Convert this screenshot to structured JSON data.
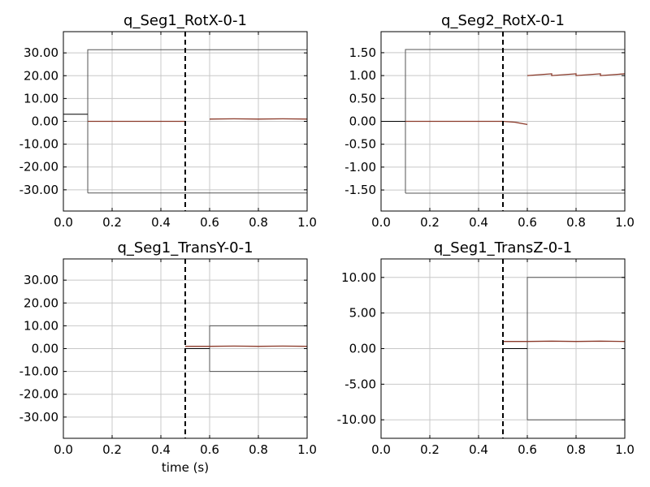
{
  "chart_data": [
    {
      "type": "line",
      "title": "q_Seg1_RotX-0-1",
      "xlabel": "",
      "ylabel": "",
      "xlim": [
        0,
        1
      ],
      "ylim": [
        -39.3,
        39.3
      ],
      "xticks": [
        "0.0",
        "0.2",
        "0.4",
        "0.6",
        "0.8",
        "1.0"
      ],
      "xtick_values": [
        0,
        0.2,
        0.4,
        0.6,
        0.8,
        1.0
      ],
      "yticks": [
        "30.00",
        "20.00",
        "10.00",
        "0.00",
        "-10.00",
        "-20.00",
        "-30.00"
      ],
      "ytick_values": [
        30,
        20,
        10,
        0,
        -10,
        -20,
        -30
      ],
      "grid": true,
      "vline_x": 0.5,
      "series": [
        {
          "role": "upper-bound",
          "color": "#555555",
          "x": [
            0.1,
            0.1,
            1.0
          ],
          "y": [
            -31.4,
            31.4,
            31.4
          ]
        },
        {
          "role": "lower-bound",
          "color": "#555555",
          "x": [
            0.1,
            1.0
          ],
          "y": [
            -31.4,
            -31.4
          ]
        },
        {
          "role": "initial",
          "color": "#000000",
          "x": [
            0.0,
            0.1
          ],
          "y": [
            3.1,
            3.1
          ]
        },
        {
          "role": "state",
          "color": "#8b3a2a",
          "x": [
            0.1,
            0.2,
            0.3,
            0.4,
            0.5
          ],
          "y": [
            0.0,
            0.0,
            0.0,
            0.0,
            0.0
          ]
        },
        {
          "role": "state",
          "color": "#8b3a2a",
          "x": [
            0.6,
            0.7,
            0.8,
            0.9,
            1.0
          ],
          "y": [
            1.0,
            1.1,
            1.0,
            1.1,
            1.0
          ]
        }
      ]
    },
    {
      "type": "line",
      "title": "q_Seg2_RotX-0-1",
      "xlabel": "",
      "ylabel": "",
      "xlim": [
        0,
        1
      ],
      "ylim": [
        -1.96,
        1.96
      ],
      "xticks": [
        "0.0",
        "0.2",
        "0.4",
        "0.6",
        "0.8",
        "1.0"
      ],
      "xtick_values": [
        0,
        0.2,
        0.4,
        0.6,
        0.8,
        1.0
      ],
      "yticks": [
        "1.50",
        "1.00",
        "0.50",
        "0.00",
        "-0.50",
        "-1.00",
        "-1.50"
      ],
      "ytick_values": [
        1.5,
        1.0,
        0.5,
        0.0,
        -0.5,
        -1.0,
        -1.5
      ],
      "grid": true,
      "vline_x": 0.5,
      "series": [
        {
          "role": "upper-bound",
          "color": "#555555",
          "x": [
            0.1,
            0.1,
            1.0
          ],
          "y": [
            -1.57,
            1.57,
            1.57
          ]
        },
        {
          "role": "lower-bound",
          "color": "#555555",
          "x": [
            0.1,
            1.0
          ],
          "y": [
            -1.57,
            -1.57
          ]
        },
        {
          "role": "initial",
          "color": "#000000",
          "x": [
            0.0,
            0.1
          ],
          "y": [
            0.0,
            0.0
          ]
        },
        {
          "role": "state",
          "color": "#8b3a2a",
          "x": [
            0.1,
            0.2,
            0.3,
            0.4,
            0.45,
            0.5,
            0.55,
            0.6
          ],
          "y": [
            0.0,
            0.0,
            0.0,
            0.0,
            0.0,
            0.0,
            -0.02,
            -0.07
          ]
        },
        {
          "role": "state",
          "color": "#8b3a2a",
          "x": [
            0.6,
            0.7,
            0.7,
            0.8,
            0.8,
            0.9,
            0.9,
            1.0
          ],
          "y": [
            1.0,
            1.04,
            1.0,
            1.04,
            1.0,
            1.04,
            1.0,
            1.04
          ]
        }
      ]
    },
    {
      "type": "line",
      "title": "q_Seg1_TransY-0-1",
      "xlabel": "time (s)",
      "ylabel": "",
      "xlim": [
        0,
        1
      ],
      "ylim": [
        -39.3,
        39.3
      ],
      "xticks": [
        "0.0",
        "0.2",
        "0.4",
        "0.6",
        "0.8",
        "1.0"
      ],
      "xtick_values": [
        0,
        0.2,
        0.4,
        0.6,
        0.8,
        1.0
      ],
      "yticks": [
        "30.00",
        "20.00",
        "10.00",
        "0.00",
        "-10.00",
        "-20.00",
        "-30.00"
      ],
      "ytick_values": [
        30,
        20,
        10,
        0,
        -10,
        -20,
        -30
      ],
      "grid": true,
      "vline_x": 0.5,
      "series": [
        {
          "role": "upper-bound",
          "color": "#555555",
          "x": [
            0.6,
            0.6,
            1.0
          ],
          "y": [
            -10.0,
            10.0,
            10.0
          ]
        },
        {
          "role": "lower-bound",
          "color": "#555555",
          "x": [
            0.6,
            1.0
          ],
          "y": [
            -10.0,
            -10.0
          ]
        },
        {
          "role": "initial",
          "color": "#000000",
          "x": [
            0.5,
            0.6
          ],
          "y": [
            0.0,
            0.0
          ]
        },
        {
          "role": "state",
          "color": "#8b3a2a",
          "x": [
            0.5,
            0.6,
            0.7,
            0.8,
            0.9,
            1.0
          ],
          "y": [
            1.0,
            1.0,
            1.1,
            1.0,
            1.1,
            1.0
          ]
        }
      ]
    },
    {
      "type": "line",
      "title": "q_Seg1_TransZ-0-1",
      "xlabel": "",
      "ylabel": "",
      "xlim": [
        0,
        1
      ],
      "ylim": [
        -12.6,
        12.6
      ],
      "xticks": [
        "0.0",
        "0.2",
        "0.4",
        "0.6",
        "0.8",
        "1.0"
      ],
      "xtick_values": [
        0,
        0.2,
        0.4,
        0.6,
        0.8,
        1.0
      ],
      "yticks": [
        "10.00",
        "5.00",
        "0.00",
        "-5.00",
        "-10.00"
      ],
      "ytick_values": [
        10,
        5,
        0,
        -5,
        -10
      ],
      "grid": true,
      "vline_x": 0.5,
      "series": [
        {
          "role": "upper-bound",
          "color": "#555555",
          "x": [
            0.6,
            0.6,
            1.0
          ],
          "y": [
            -10.0,
            10.0,
            10.0
          ]
        },
        {
          "role": "lower-bound",
          "color": "#555555",
          "x": [
            0.6,
            1.0
          ],
          "y": [
            -10.0,
            -10.0
          ]
        },
        {
          "role": "initial",
          "color": "#000000",
          "x": [
            0.5,
            0.6
          ],
          "y": [
            0.0,
            0.0
          ]
        },
        {
          "role": "state",
          "color": "#8b3a2a",
          "x": [
            0.5,
            0.6,
            0.7,
            0.8,
            0.9,
            1.0
          ],
          "y": [
            1.0,
            1.0,
            1.05,
            1.0,
            1.05,
            1.0
          ]
        }
      ]
    }
  ]
}
